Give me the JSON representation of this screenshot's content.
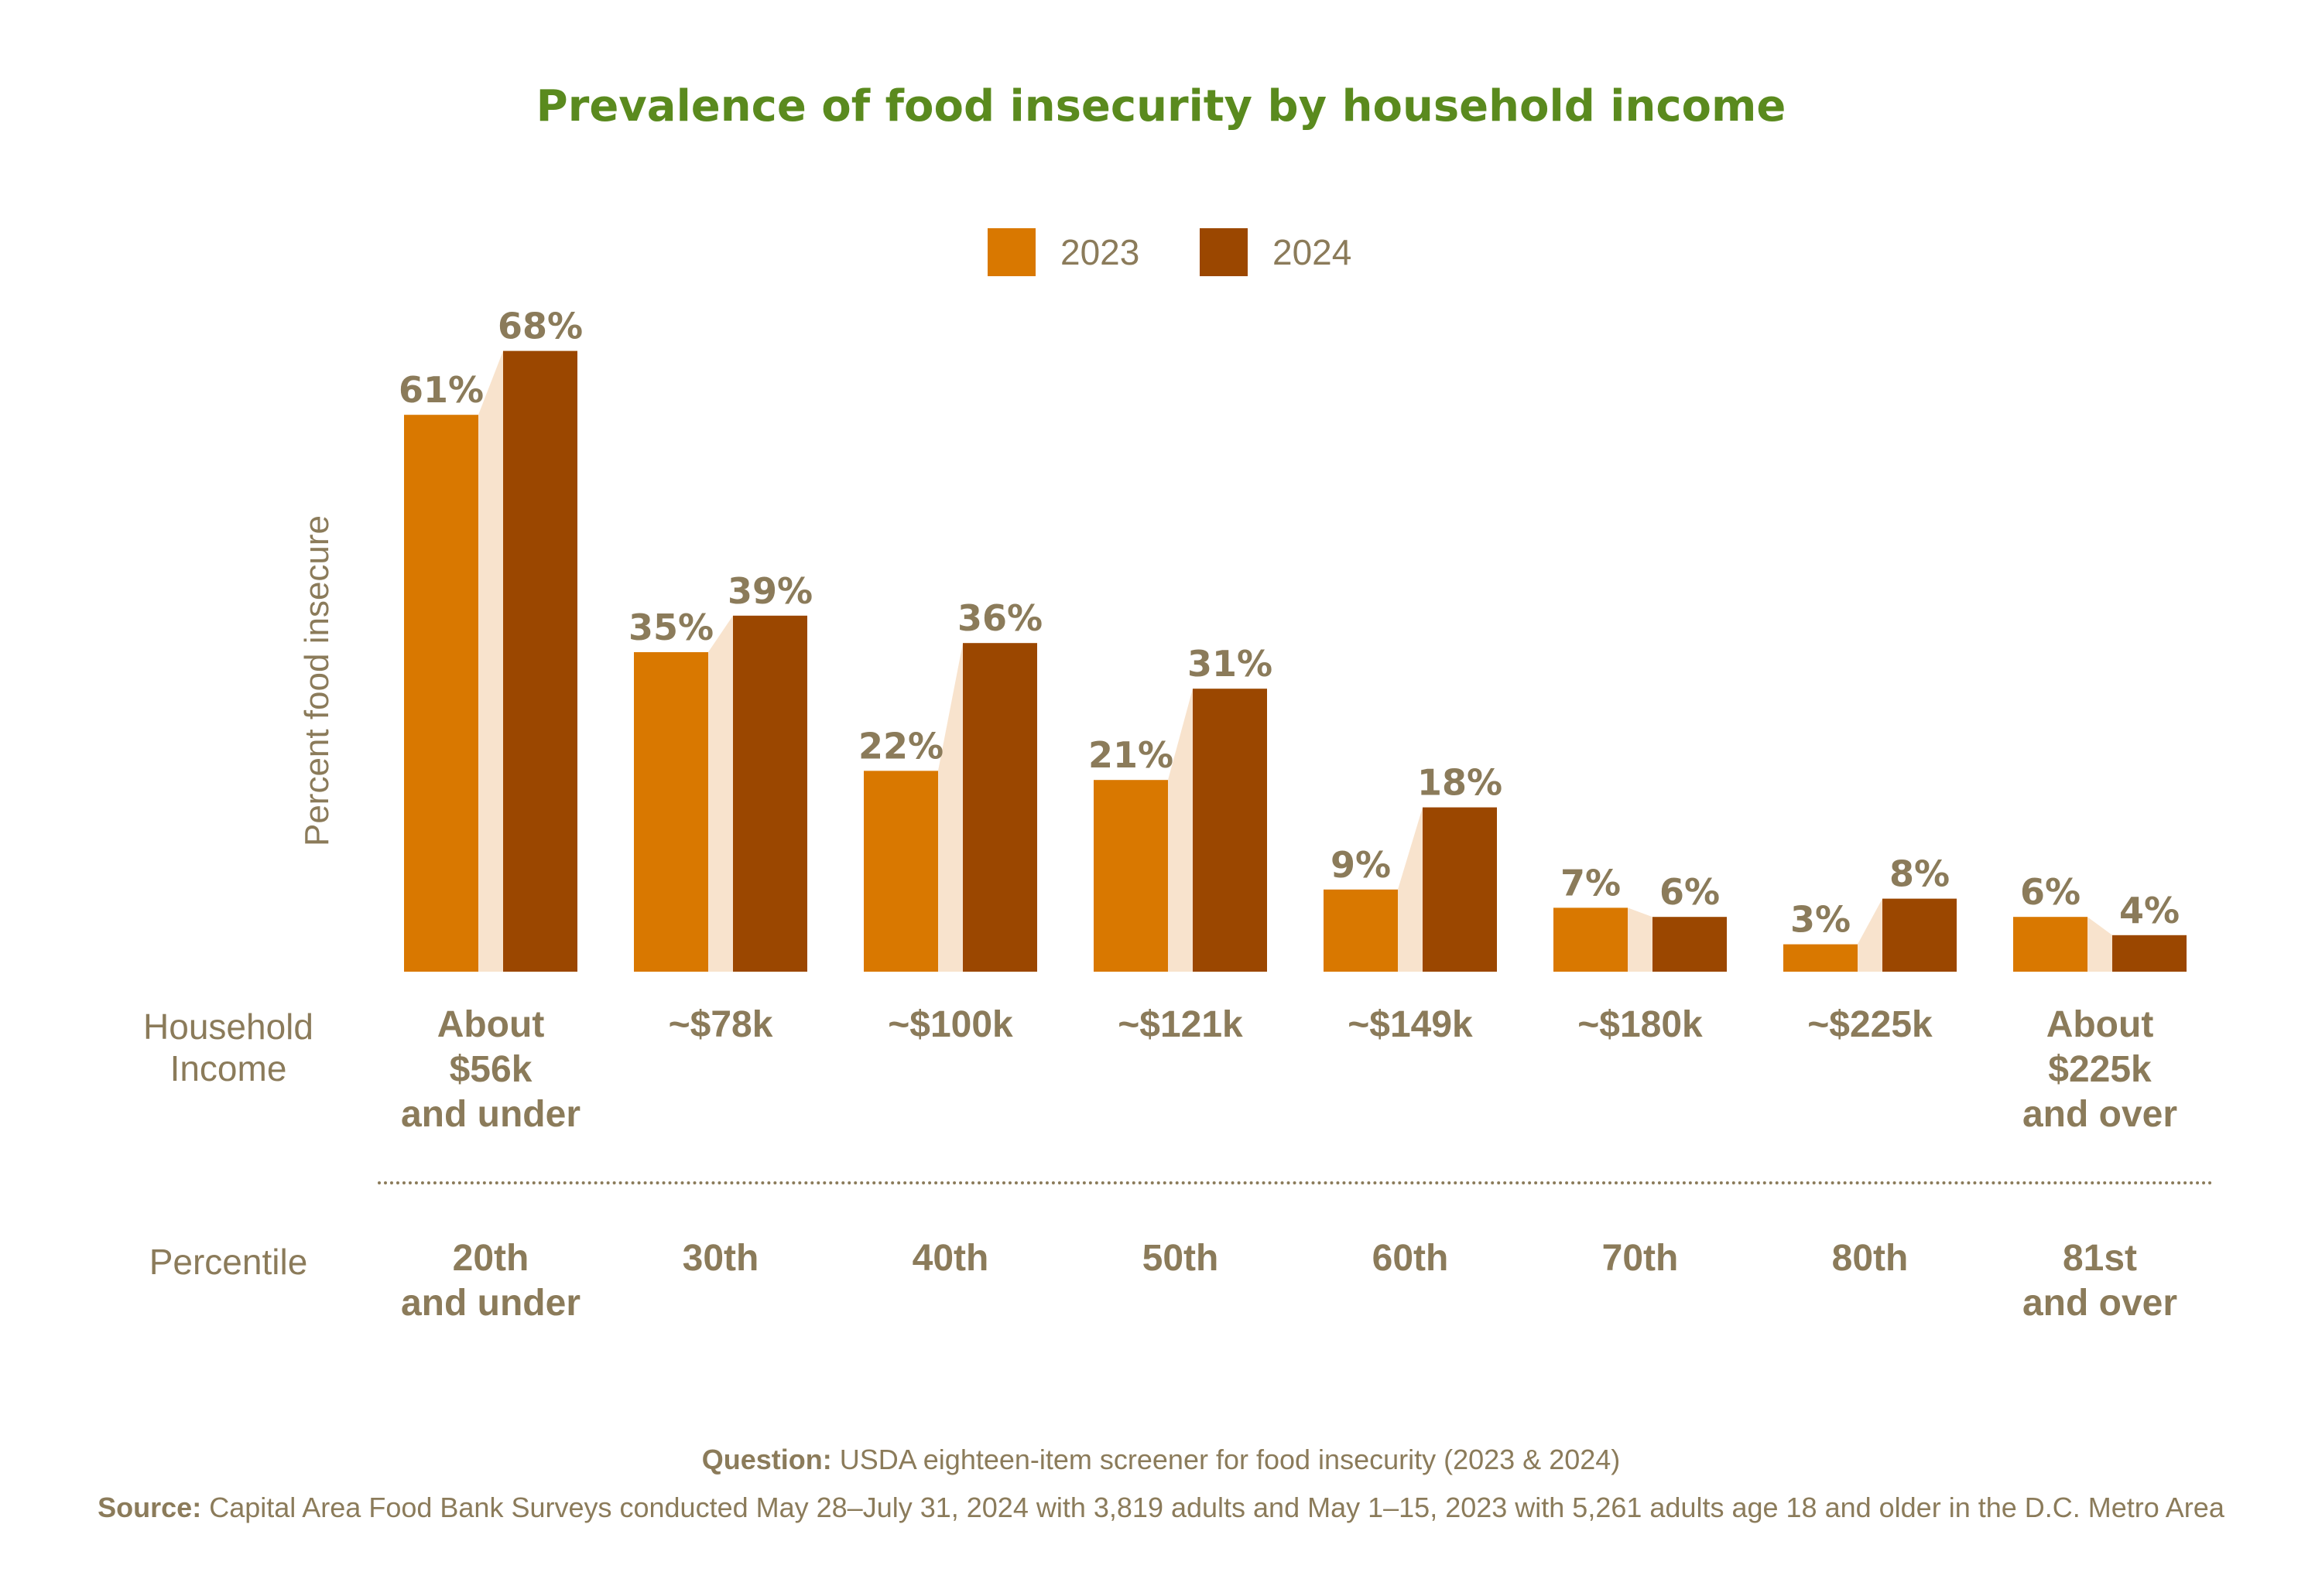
{
  "chart_data": {
    "type": "bar",
    "title": "Prevalence of food insecurity by household income",
    "ylabel": "Percent food insecure",
    "ylim": [
      0,
      70
    ],
    "legend_position": "top-center",
    "categories": [
      "About $56k and under",
      "~$78k",
      "~$100k",
      "~$121k",
      "~$149k",
      "~$180k",
      "~$225k",
      "About $225k and over"
    ],
    "percentiles": [
      "20th and under",
      "30th",
      "40th",
      "50th",
      "60th",
      "70th",
      "80th",
      "81st and over"
    ],
    "series": [
      {
        "name": "2023",
        "color": "#d97800",
        "values": [
          61,
          35,
          22,
          21,
          9,
          7,
          3,
          6
        ],
        "labels": [
          "61%",
          "35%",
          "22%",
          "21%",
          "9%",
          "7%",
          "3%",
          "6%"
        ]
      },
      {
        "name": "2024",
        "color": "#9b4700",
        "values": [
          68,
          39,
          36,
          31,
          18,
          6,
          8,
          4
        ],
        "labels": [
          "68%",
          "39%",
          "36%",
          "31%",
          "18%",
          "6%",
          "8%",
          "4%"
        ]
      }
    ],
    "connector_color": "#f8e3cd"
  },
  "row_labels": {
    "income_line1": "Household",
    "income_line2": "Income",
    "percentile": "Percentile"
  },
  "income_labels": [
    [
      "About",
      "$56k",
      "and under"
    ],
    [
      "~$78k"
    ],
    [
      "~$100k"
    ],
    [
      "~$121k"
    ],
    [
      "~$149k"
    ],
    [
      "~$180k"
    ],
    [
      "~$225k"
    ],
    [
      "About",
      "$225k",
      "and over"
    ]
  ],
  "percentile_labels": [
    [
      "20th",
      "and under"
    ],
    [
      "30th"
    ],
    [
      "40th"
    ],
    [
      "50th"
    ],
    [
      "60th"
    ],
    [
      "70th"
    ],
    [
      "80th"
    ],
    [
      "81st",
      "and over"
    ]
  ],
  "footer": {
    "question_label": "Question:",
    "question_text": " USDA eighteen-item screener for food insecurity (2023 & 2024)",
    "source_label": "Source:",
    "source_text": " Capital Area Food Bank Surveys conducted May 28–July 31, 2024 with 3,819 adults and May 1–15, 2023 with 5,261 adults age 18 and older in the D.C. Metro Area"
  }
}
